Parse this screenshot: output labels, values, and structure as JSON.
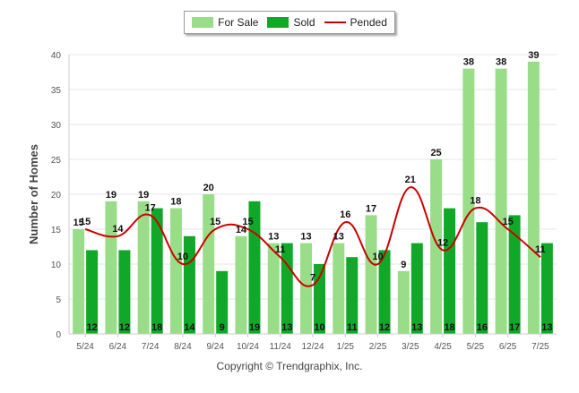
{
  "chart_data": {
    "type": "bar",
    "categories": [
      "5/24",
      "6/24",
      "7/24",
      "8/24",
      "9/24",
      "10/24",
      "11/24",
      "12/24",
      "1/25",
      "2/25",
      "3/25",
      "4/25",
      "5/25",
      "6/25",
      "7/25"
    ],
    "series": [
      {
        "name": "For Sale",
        "type": "bar",
        "color": "#99dd88",
        "values": [
          15,
          19,
          19,
          18,
          20,
          14,
          13,
          13,
          13,
          17,
          9,
          25,
          38,
          38,
          39
        ]
      },
      {
        "name": "Sold",
        "type": "bar",
        "color": "#11a82a",
        "values": [
          12,
          12,
          18,
          14,
          9,
          19,
          13,
          10,
          11,
          12,
          13,
          18,
          16,
          17,
          13
        ]
      },
      {
        "name": "Pended",
        "type": "line",
        "color": "#cc0000",
        "values": [
          15,
          14,
          17,
          10,
          15,
          15,
          11,
          7,
          16,
          10,
          21,
          12,
          18,
          15,
          11
        ]
      }
    ],
    "xlabel": "",
    "ylabel": "Number of Homes",
    "ylim": [
      0,
      40
    ],
    "yticks": [
      0,
      5,
      10,
      15,
      20,
      25,
      30,
      35,
      40
    ],
    "grid": true,
    "legend_position": "top-center"
  },
  "copyright": "Copyright © Trendgraphix, Inc."
}
